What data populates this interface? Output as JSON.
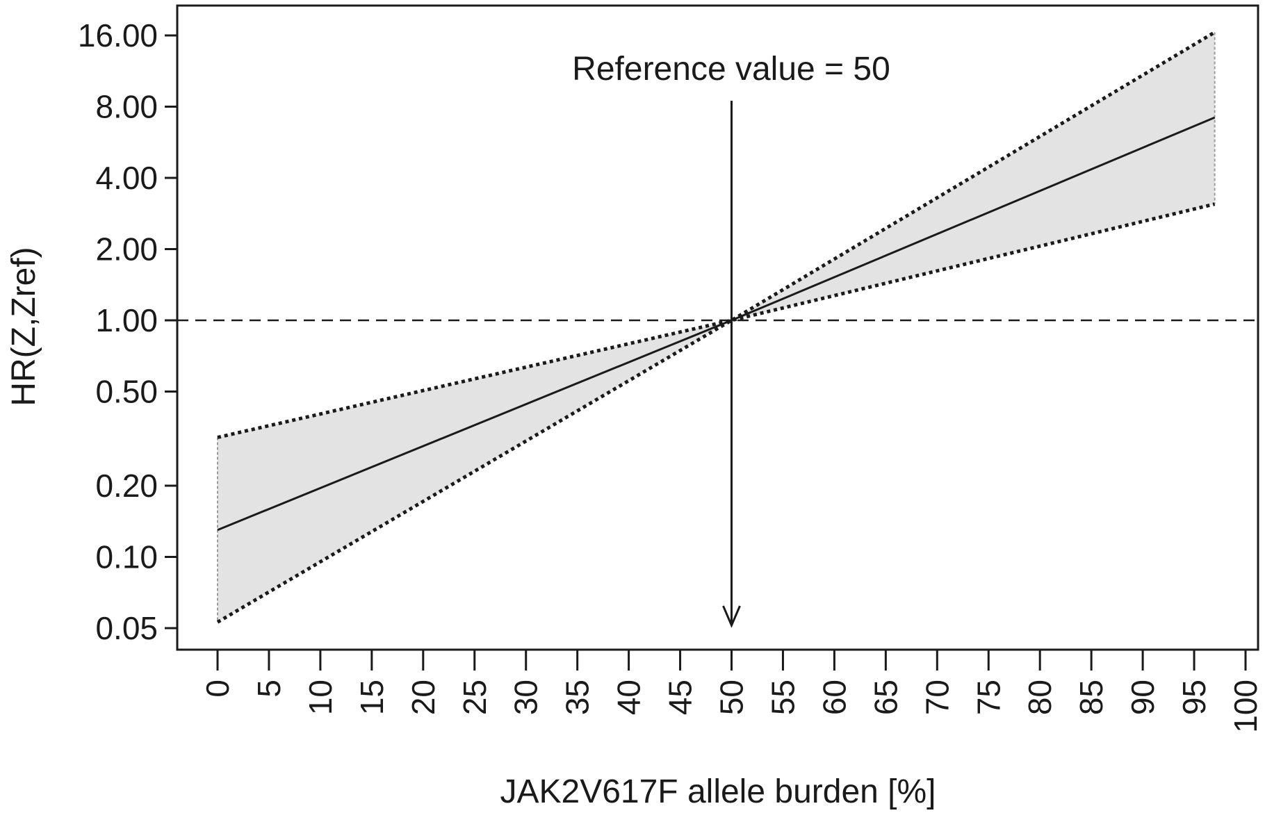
{
  "chart_data": {
    "type": "line",
    "title": "",
    "xlabel": "JAK2V617F allele burden [%]",
    "ylabel": "HR(Z,Zref)",
    "y_scale": "log2",
    "xlim": [
      0,
      100
    ],
    "ylim": [
      0.05,
      16
    ],
    "x_ticks": [
      0,
      5,
      10,
      15,
      20,
      25,
      30,
      35,
      40,
      45,
      50,
      55,
      60,
      65,
      70,
      75,
      80,
      85,
      90,
      95,
      100
    ],
    "x_tick_labels": [
      "0",
      "5",
      "10",
      "15",
      "20",
      "25",
      "30",
      "35",
      "40",
      "45",
      "50",
      "55",
      "60",
      "65",
      "70",
      "75",
      "80",
      "85",
      "90",
      "95",
      "100"
    ],
    "y_ticks": [
      0.05,
      0.1,
      0.2,
      0.5,
      1,
      2,
      4,
      8,
      16
    ],
    "y_tick_labels": [
      "0.05",
      "0.10",
      "0.20",
      "0.50",
      "1.00",
      "2.00",
      "4.00",
      "8.00",
      "16.00"
    ],
    "reference_line": {
      "y": 1.0,
      "style": "dashed"
    },
    "reference_arrow": {
      "x": 50,
      "label": "Reference value = 50"
    },
    "series": [
      {
        "role": "estimate",
        "style": "solid",
        "x": [
          0,
          50,
          97
        ],
        "y": [
          0.13,
          1.0,
          7.2
        ]
      },
      {
        "role": "upper-ci",
        "style": "dotted",
        "x": [
          0,
          50,
          97
        ],
        "y": [
          0.32,
          1.0,
          16.5
        ]
      },
      {
        "role": "lower-ci",
        "style": "dotted",
        "x": [
          0,
          50,
          97
        ],
        "y": [
          0.053,
          1.0,
          3.1
        ]
      }
    ],
    "ci_fill_color": "#e3e3e3",
    "line_color": "#1a1a1a",
    "grid": false,
    "legend": "none"
  }
}
